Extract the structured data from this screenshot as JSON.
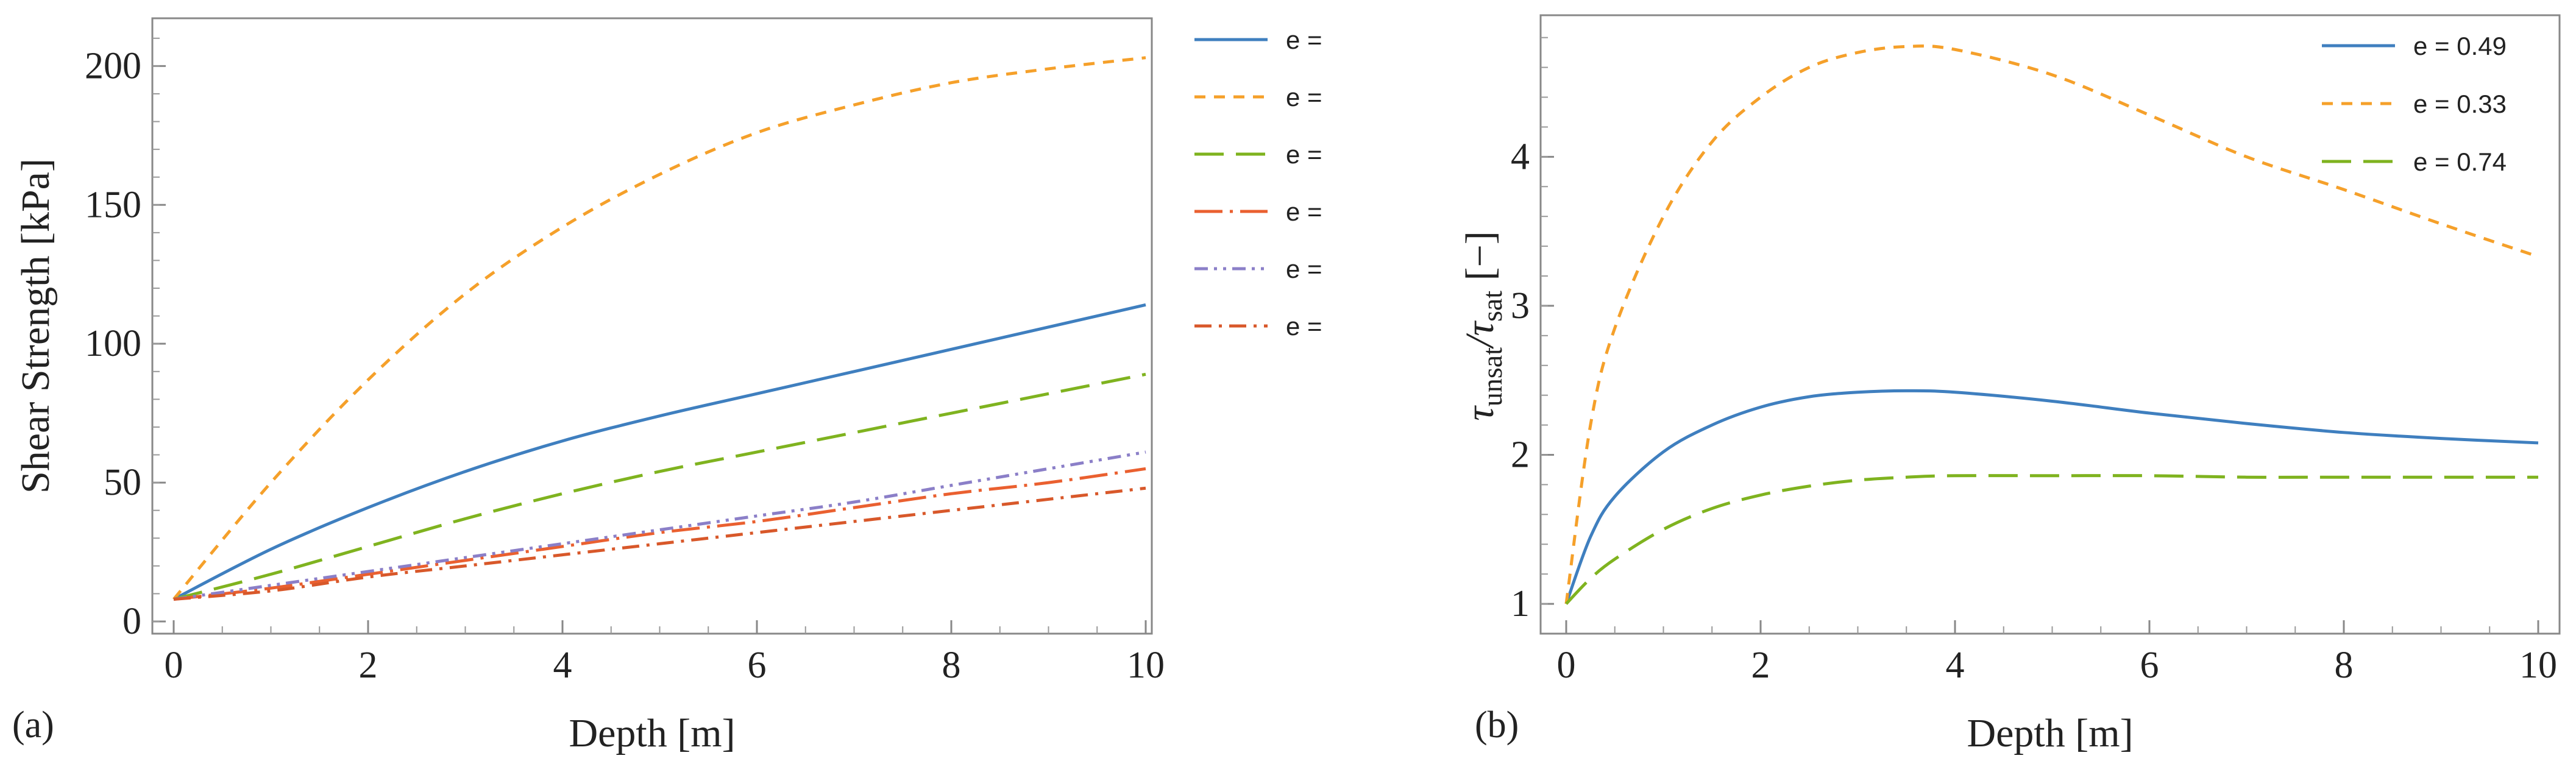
{
  "chart_data": [
    {
      "type": "line",
      "panel_label": "(a)",
      "xlabel": "Depth [m]",
      "ylabel": "Shear Strength [kPa]",
      "xlim": [
        0,
        10
      ],
      "ylim": [
        0,
        215
      ],
      "xticks": [
        0,
        2,
        4,
        6,
        8,
        10
      ],
      "yticks": [
        0,
        50,
        100,
        150,
        200
      ],
      "legend_position": "outside-right",
      "x": [
        0,
        1,
        2,
        3,
        4,
        5,
        6,
        7,
        8,
        9,
        10
      ],
      "series": [
        {
          "name": "e =",
          "style": "solid",
          "color": "#3f7fbf",
          "values": [
            8,
            26,
            41,
            54,
            65,
            74,
            82,
            90,
            98,
            106,
            114
          ]
        },
        {
          "name": "e =",
          "style": "short-dash",
          "color": "#f5a02a",
          "values": [
            8,
            50,
            87,
            118,
            142,
            161,
            176,
            186,
            194,
            199,
            203
          ]
        },
        {
          "name": "e =",
          "style": "long-dash",
          "color": "#7fb31f",
          "values": [
            8,
            17,
            27,
            37,
            46,
            54,
            61,
            68,
            75,
            82,
            89
          ]
        },
        {
          "name": "e =",
          "style": "long-dash-dot",
          "color": "#ea6030",
          "values": [
            8,
            12,
            17,
            22,
            27,
            32,
            36,
            41,
            46,
            50,
            55
          ]
        },
        {
          "name": "e =",
          "style": "dot-dash-dot",
          "color": "#8b7fc8",
          "values": [
            8,
            13,
            18,
            23,
            28,
            33,
            38,
            43,
            49,
            55,
            61
          ]
        },
        {
          "name": "e =",
          "style": "dash-dot",
          "color": "#d8582a",
          "values": [
            8,
            11,
            16,
            20,
            24,
            28,
            32,
            36,
            40,
            44,
            48
          ]
        }
      ]
    },
    {
      "type": "line",
      "panel_label": "(b)",
      "xlabel": "Depth [m]",
      "ylabel_main": "τ",
      "ylabel_sub1": "unsat",
      "ylabel_slash": "/τ",
      "ylabel_sub2": "sat",
      "ylabel_tail": " [−]",
      "xlim": [
        0,
        10
      ],
      "ylim": [
        0.8,
        4.95
      ],
      "xticks": [
        0,
        2,
        4,
        6,
        8,
        10
      ],
      "yticks": [
        1,
        2,
        3,
        4
      ],
      "legend_position": "top-right",
      "x": [
        0,
        0.25,
        0.5,
        1,
        1.5,
        2,
        2.5,
        3,
        3.5,
        4,
        5,
        6,
        7,
        8,
        9,
        10
      ],
      "series": [
        {
          "name": "e = 0.49",
          "style": "solid",
          "color": "#3f7fbf",
          "values": [
            1.0,
            1.45,
            1.72,
            2.02,
            2.2,
            2.32,
            2.39,
            2.42,
            2.43,
            2.42,
            2.36,
            2.28,
            2.21,
            2.15,
            2.11,
            2.08
          ]
        },
        {
          "name": "e = 0.33",
          "style": "short-dash",
          "color": "#f5a02a",
          "values": [
            1.0,
            2.2,
            2.85,
            3.6,
            4.1,
            4.4,
            4.6,
            4.7,
            4.74,
            4.72,
            4.55,
            4.28,
            4.0,
            3.78,
            3.55,
            3.33
          ]
        },
        {
          "name": "e = 0.74",
          "style": "long-dash",
          "color": "#7fb31f",
          "values": [
            1.0,
            1.17,
            1.3,
            1.5,
            1.64,
            1.73,
            1.79,
            1.83,
            1.85,
            1.86,
            1.86,
            1.86,
            1.85,
            1.85,
            1.85,
            1.85
          ]
        }
      ]
    }
  ]
}
